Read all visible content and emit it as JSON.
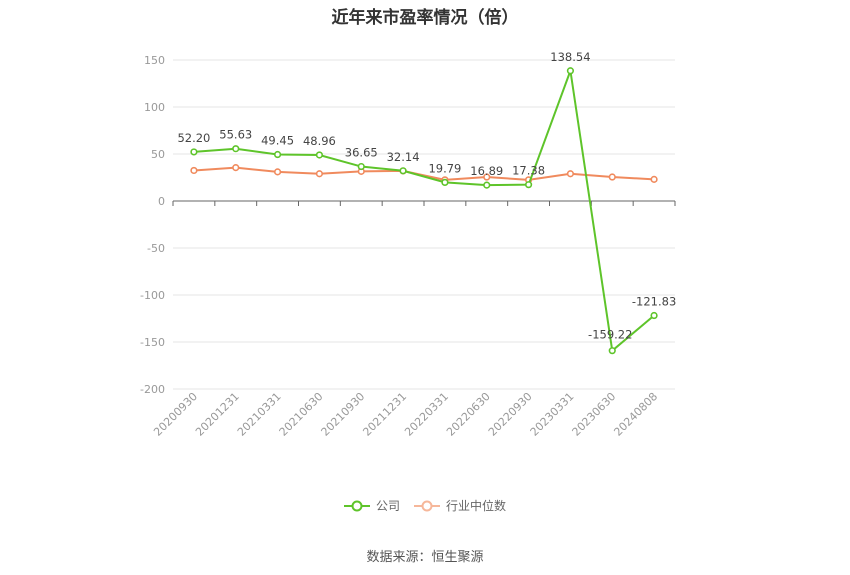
{
  "chart_data": {
    "type": "line",
    "title": "近年来市盈率情况（倍）",
    "categories": [
      "20200930",
      "20201231",
      "20210331",
      "20210630",
      "20210930",
      "20211231",
      "20220331",
      "20220630",
      "20220930",
      "20230331",
      "20230630",
      "20240808"
    ],
    "ylim": [
      -200,
      150
    ],
    "yticks": [
      150,
      100,
      50,
      0,
      -50,
      -100,
      -150,
      -200
    ],
    "grid": true,
    "legend_position": "bottom",
    "series": [
      {
        "name": "公司",
        "color": "#5ec42a",
        "values": [
          52.2,
          55.63,
          49.45,
          48.96,
          36.65,
          32.14,
          19.79,
          16.89,
          17.38,
          138.54,
          -159.22,
          -121.83
        ],
        "labels": [
          "52.20",
          "55.63",
          "49.45",
          "48.96",
          "36.65",
          "32.14",
          "19.79",
          "16.89",
          "17.38",
          "138.54",
          "-159.22",
          "-121.83"
        ]
      },
      {
        "name": "行业中位数",
        "color": "#f08a5d",
        "values": [
          32.5,
          35.5,
          31.0,
          29.0,
          31.5,
          32.0,
          22.5,
          25.5,
          22.5,
          29.0,
          25.5,
          23.0
        ]
      }
    ]
  },
  "source": "数据来源：恒生聚源"
}
